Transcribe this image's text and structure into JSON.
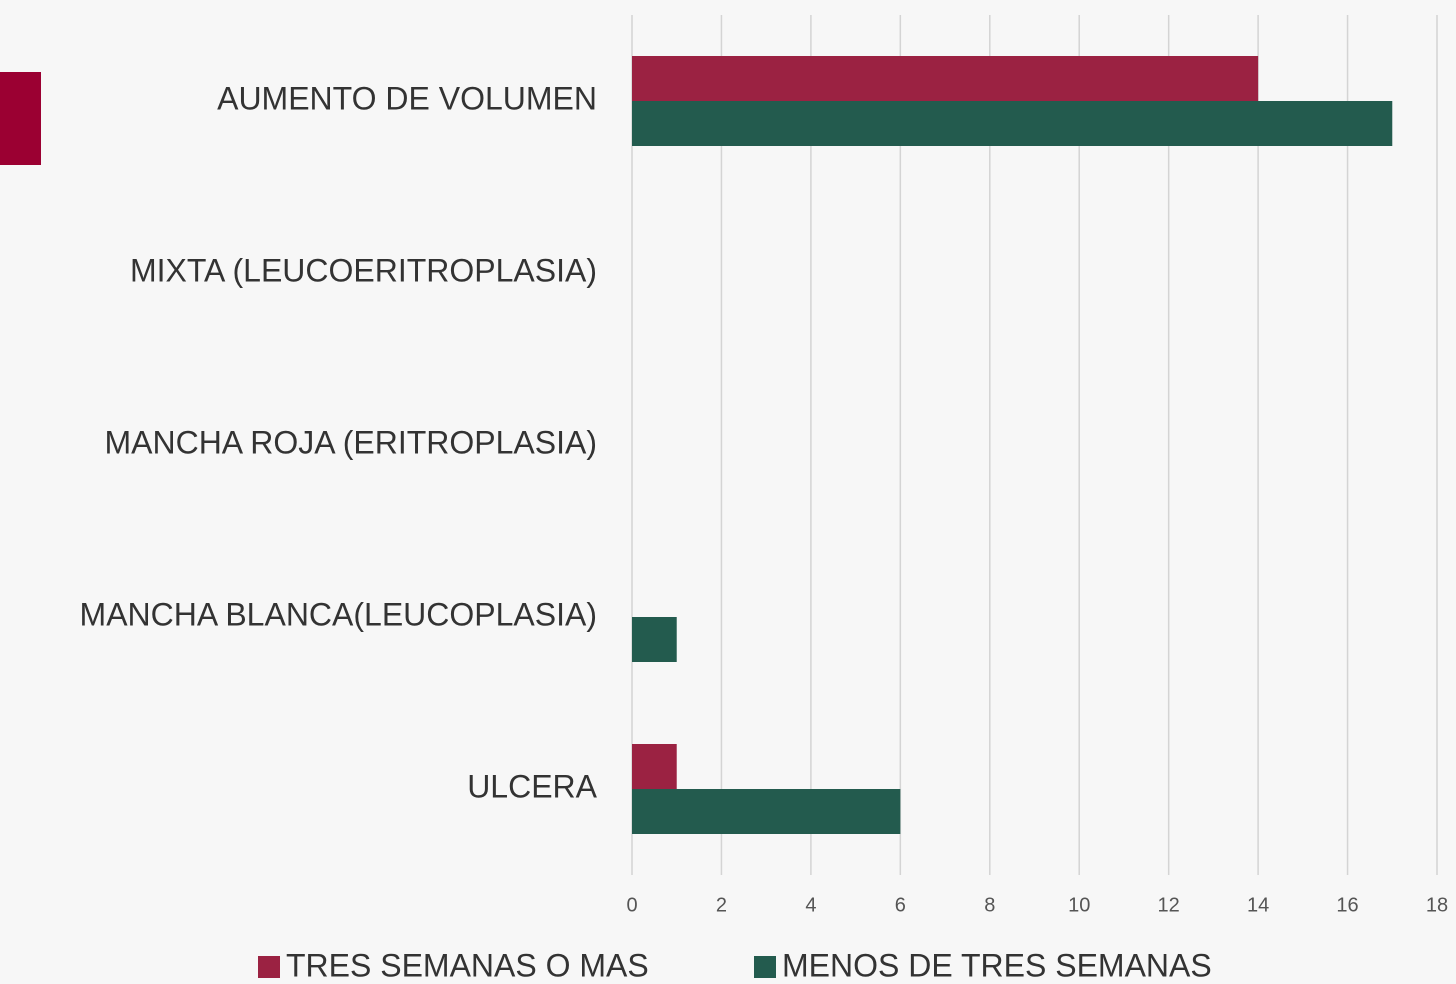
{
  "chart_data": {
    "type": "hbar",
    "categories": [
      "AUMENTO DE VOLUMEN",
      "MIXTA (LEUCOERITROPLASIA)",
      "MANCHA ROJA (ERITROPLASIA)",
      "MANCHA BLANCA(LEUCOPLASIA)",
      "ULCERA"
    ],
    "series": [
      {
        "name": "TRES SEMANAS O MAS",
        "color": "#9b2242",
        "values": [
          14,
          0,
          0,
          0,
          1
        ]
      },
      {
        "name": "MENOS DE TRES SEMANAS",
        "color": "#235b4e",
        "values": [
          17,
          0,
          0,
          1,
          6
        ]
      }
    ],
    "xlim": [
      0,
      18
    ],
    "xticks": [
      0,
      2,
      4,
      6,
      8,
      10,
      12,
      14,
      16,
      18
    ],
    "grid": true,
    "legend": "bottom"
  }
}
